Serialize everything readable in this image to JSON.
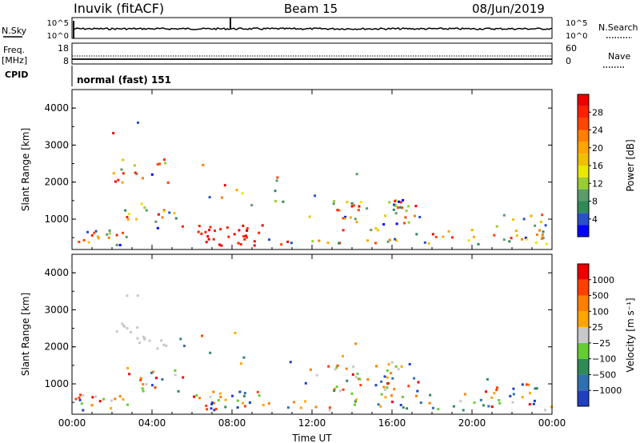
{
  "header": {
    "station": "Inuvik (fitACF)",
    "beam": "Beam 15",
    "date": "08/Jun/2019"
  },
  "summary_panels": {
    "nsky_label": "N.Sky",
    "nsearch_label": "N.Search",
    "nsky_ticks": [
      "10^5",
      "10^0"
    ],
    "nsearch_ticks": [
      "10^5",
      "10^0"
    ],
    "freq_label_1": "Freq.",
    "freq_label_2": "[MHz]",
    "freq_ticks": [
      "18",
      "8"
    ],
    "nave_label": "Nave",
    "nave_ticks": [
      "60",
      "0"
    ],
    "cpid_label": "CPID",
    "cpid_text": "normal (fast) 151"
  },
  "chart_data": [
    {
      "type": "heatmap",
      "title": "",
      "ylabel": "Slant Range [km]",
      "xlabel": "Time UT",
      "x_ticks": [
        "00:00",
        "04:00",
        "08:00",
        "12:00",
        "16:00",
        "20:00",
        "00:00"
      ],
      "y_ticks": [
        1000,
        2000,
        3000,
        4000
      ],
      "ylim": [
        180,
        4500
      ],
      "xlim_hours": [
        0,
        24
      ],
      "colorbar": {
        "label": "Power [dB]",
        "ticks": [
          "4",
          "8",
          "12",
          "16",
          "20",
          "24",
          "28"
        ],
        "colors": [
          "#0000ff",
          "#2850c8",
          "#2e8b57",
          "#5a9c6a",
          "#9acd32",
          "#e8e800",
          "#f0c000",
          "#ffa500",
          "#ff7f00",
          "#ff4500",
          "#ff2000",
          "#ee0000"
        ]
      }
    },
    {
      "type": "heatmap",
      "title": "",
      "ylabel": "Slant Range [km]",
      "xlabel": "Time UT",
      "x_ticks": [
        "00:00",
        "04:00",
        "08:00",
        "12:00",
        "16:00",
        "20:00",
        "00:00"
      ],
      "y_ticks": [
        1000,
        2000,
        3000,
        4000
      ],
      "ylim": [
        180,
        4500
      ],
      "xlim_hours": [
        0,
        24
      ],
      "colorbar": {
        "label": "Velocity [m s⁻¹]",
        "ticks": [
          "1000",
          "500",
          "100",
          "25",
          "−25",
          "−100",
          "−500",
          "−1000"
        ],
        "colors": [
          "#2040c0",
          "#3070b0",
          "#2e8b57",
          "#66cc33",
          "#c8c8c8",
          "#ffa500",
          "#ff7f00",
          "#ff4000",
          "#ee0000"
        ]
      }
    }
  ],
  "x_axis_title": "Time UT"
}
